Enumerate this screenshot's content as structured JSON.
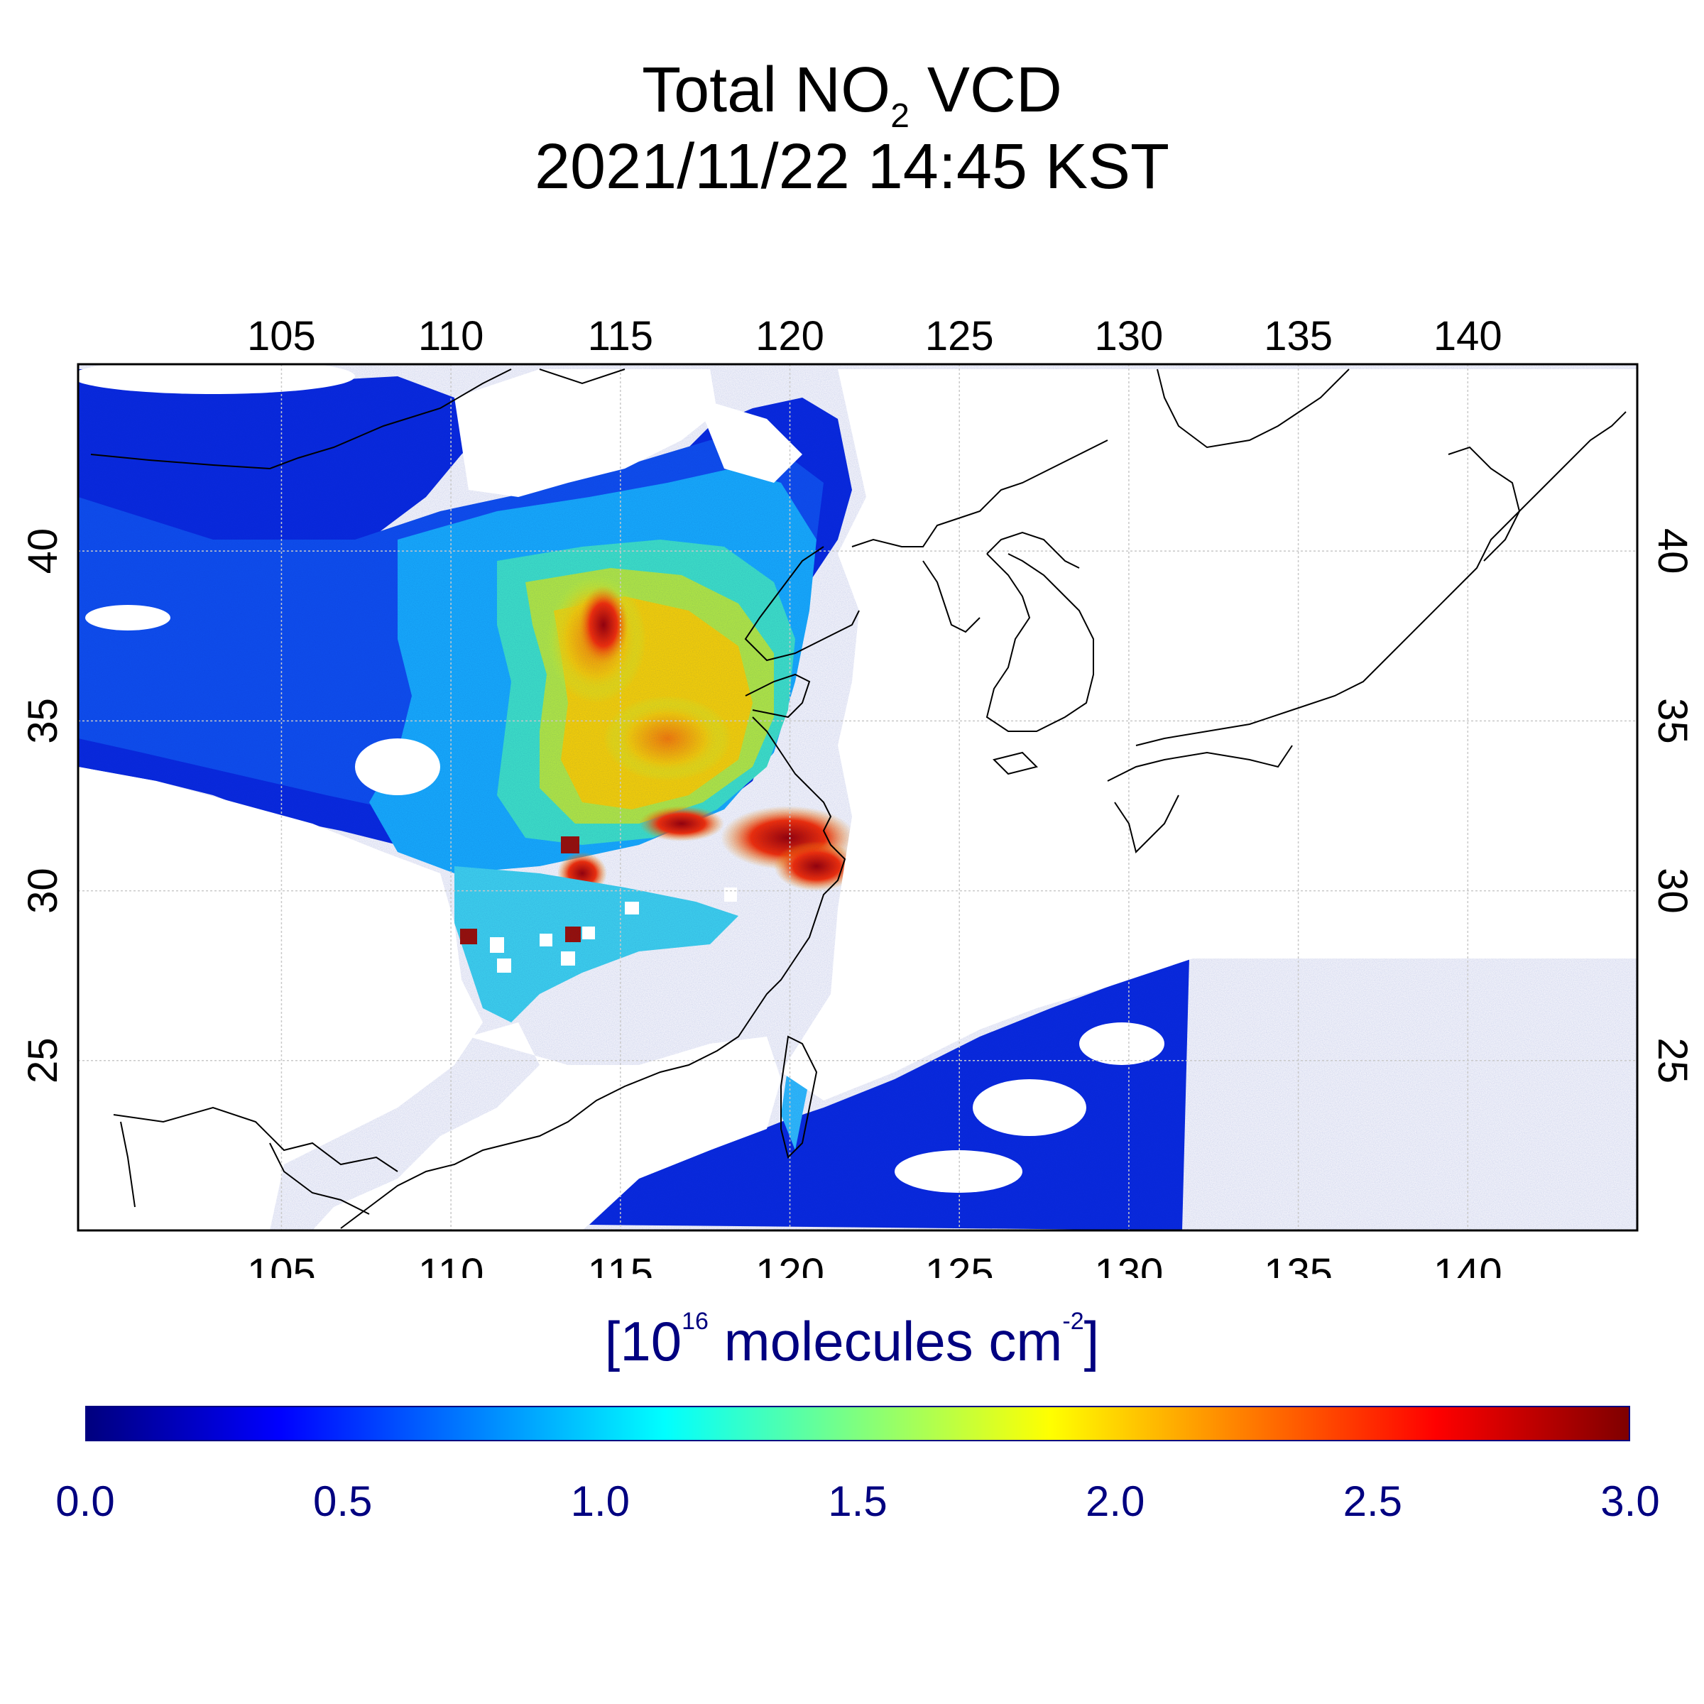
{
  "title": {
    "prefix": "Total NO",
    "subscript": "2",
    "suffix": " VCD",
    "timestamp": "2021/11/22 14:45 KST"
  },
  "map": {
    "lon_range": [
      99,
      145
    ],
    "lat_range": [
      20,
      45.5
    ],
    "lon_ticks": [
      "105",
      "110",
      "115",
      "120",
      "125",
      "130",
      "135",
      "140"
    ],
    "lat_ticks": [
      "40",
      "35",
      "30",
      "25"
    ],
    "projection": "equirectangular",
    "grid": true,
    "colors": {
      "frame": "#000000",
      "grid": "#c8c8c8",
      "coast": "#000000",
      "missing": "#ffffff"
    }
  },
  "colorbar": {
    "unit_prefix": "[10",
    "unit_exponent": "16",
    "unit_middle": " molecules cm",
    "unit_exponent2": "-2",
    "unit_suffix": "]",
    "range": [
      0.0,
      3.0
    ],
    "labels": [
      "0.0",
      "0.5",
      "1.0",
      "1.5",
      "2.0",
      "2.5",
      "3.0"
    ],
    "colormap": "jet",
    "label_color": "#000080"
  }
}
